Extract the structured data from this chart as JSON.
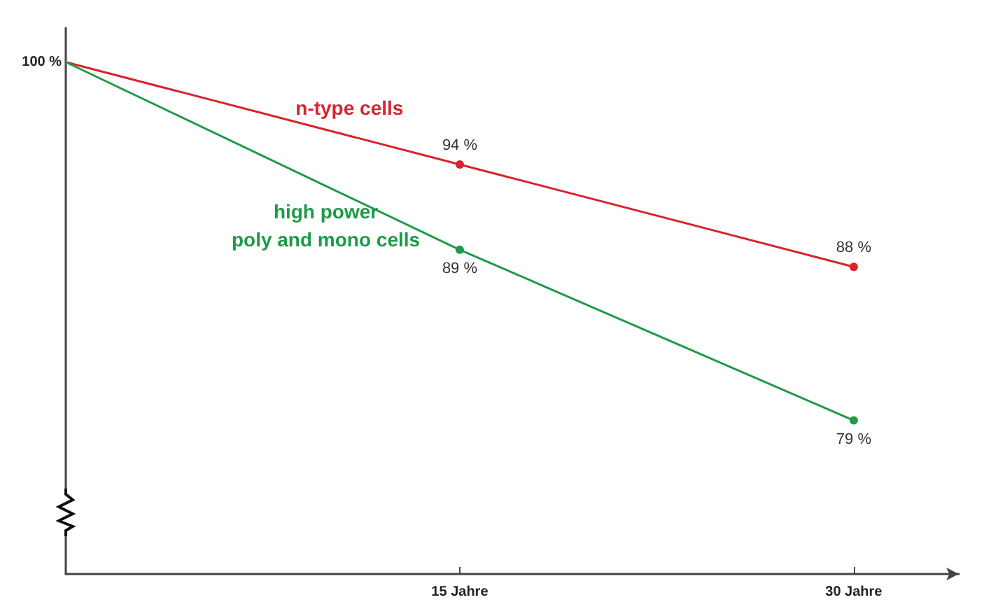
{
  "chart_data": {
    "type": "line",
    "x": [
      0,
      15,
      30
    ],
    "series": [
      {
        "name": "n-type cells",
        "color": "#d9232e",
        "values": [
          100,
          94,
          88
        ],
        "value_labels": [
          null,
          "94 %",
          "88 %"
        ]
      },
      {
        "name": "high power\npoly and mono cells",
        "color": "#1f9a48",
        "values": [
          100,
          89,
          79
        ],
        "value_labels": [
          null,
          "89 %",
          "79 %"
        ]
      }
    ],
    "xlim": [
      0,
      34
    ],
    "xticks": [
      {
        "value": 15,
        "label": "15 Jahre"
      },
      {
        "value": 30,
        "label": "30 Jahre"
      }
    ],
    "ylim": [
      70,
      102
    ],
    "annotations": [
      {
        "text": "100 %",
        "x": 0,
        "y": 100
      }
    ],
    "grid": false,
    "marker": "circle",
    "line_style": "solid"
  }
}
